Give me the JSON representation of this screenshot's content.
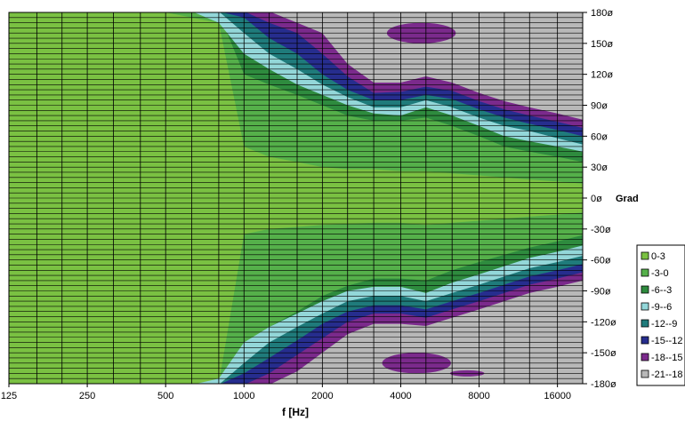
{
  "chart_data": {
    "type": "heatmap",
    "title": "",
    "xlabel": "f [Hz]",
    "ylabel": "",
    "x_scale": "log",
    "x_range": [
      125,
      20000
    ],
    "y_range": [
      -180,
      180
    ],
    "x_ticks": [
      125,
      250,
      500,
      1000,
      2000,
      4000,
      8000,
      16000
    ],
    "x_tick_labels": [
      "125",
      "250",
      "500",
      "1000",
      "2000",
      "4000",
      "8000",
      "16000"
    ],
    "y_ticks": [
      180,
      150,
      120,
      90,
      60,
      30,
      0,
      -30,
      -60,
      -90,
      -120,
      -150,
      -180
    ],
    "y_tick_labels": [
      "180ø",
      "150ø",
      "120ø",
      "90ø",
      "60ø",
      "30ø",
      "0ø",
      "-30ø",
      "-60ø",
      "-90ø",
      "-120ø",
      "-150ø",
      "-180ø"
    ],
    "y_unit_label": "Grad",
    "legend_position": "right-bottom",
    "legend": [
      {
        "label": "0-3",
        "color": "#7ac142"
      },
      {
        "label": "-3-0",
        "color": "#55b04a"
      },
      {
        "label": "-6--3",
        "color": "#2e8b3e"
      },
      {
        "label": "-9--6",
        "color": "#93d7d9"
      },
      {
        "label": "-12--9",
        "color": "#1f7b7b"
      },
      {
        "label": "-15--12",
        "color": "#262d8e"
      },
      {
        "label": "-18--15",
        "color": "#7b2a8c"
      },
      {
        "label": "-21--18",
        "color": "#b8b8b8"
      }
    ],
    "contours": {
      "freqs": [
        125,
        160,
        200,
        250,
        315,
        400,
        500,
        630,
        800,
        1000,
        1250,
        1600,
        2000,
        2500,
        3150,
        4000,
        5000,
        6300,
        8000,
        10000,
        12500,
        16000,
        20000
      ],
      "upper": [
        {
          "level": "-6--3",
          "angles": [
            180,
            180,
            180,
            180,
            180,
            180,
            180,
            180,
            180,
            120,
            110,
            100,
            90,
            80,
            75,
            75,
            78,
            70,
            60,
            50,
            45,
            40,
            35
          ]
        },
        {
          "level": "-9--6",
          "angles": [
            181,
            181,
            181,
            181,
            181,
            181,
            181,
            181,
            170,
            140,
            125,
            110,
            100,
            90,
            82,
            80,
            88,
            80,
            70,
            60,
            55,
            50,
            45
          ]
        },
        {
          "level": "-12--9",
          "angles": [
            181,
            181,
            181,
            181,
            181,
            181,
            181,
            181,
            181,
            160,
            140,
            125,
            110,
            98,
            88,
            88,
            95,
            88,
            78,
            70,
            65,
            58,
            52
          ]
        },
        {
          "level": "-15--12",
          "angles": [
            181,
            181,
            181,
            181,
            181,
            181,
            181,
            181,
            181,
            175,
            155,
            140,
            120,
            105,
            95,
            95,
            100,
            96,
            86,
            78,
            72,
            66,
            60
          ]
        },
        {
          "level": "-18--15",
          "angles": [
            181,
            181,
            181,
            181,
            181,
            181,
            181,
            181,
            181,
            181,
            170,
            160,
            140,
            118,
            102,
            103,
            108,
            104,
            94,
            86,
            80,
            74,
            68
          ]
        },
        {
          "level": "-21--18",
          "angles": [
            181,
            181,
            181,
            181,
            181,
            181,
            181,
            181,
            181,
            181,
            181,
            170,
            160,
            130,
            112,
            112,
            118,
            112,
            102,
            94,
            88,
            82,
            76
          ]
        }
      ],
      "lower": [
        {
          "level": "-6--3",
          "angles": [
            -180,
            -180,
            -180,
            -180,
            -180,
            -180,
            -180,
            -180,
            -180,
            -150,
            -125,
            -110,
            -95,
            -85,
            -78,
            -78,
            -80,
            -70,
            -62,
            -55,
            -48,
            -42,
            -36
          ]
        },
        {
          "level": "-9--6",
          "angles": [
            -181,
            -181,
            -181,
            -181,
            -181,
            -181,
            -181,
            -181,
            -175,
            -140,
            -125,
            -112,
            -100,
            -90,
            -86,
            -86,
            -92,
            -82,
            -74,
            -66,
            -58,
            -52,
            -46
          ]
        },
        {
          "level": "-12--9",
          "angles": [
            -181,
            -181,
            -181,
            -181,
            -181,
            -181,
            -181,
            -181,
            -181,
            -160,
            -140,
            -125,
            -112,
            -100,
            -95,
            -95,
            -100,
            -92,
            -84,
            -76,
            -68,
            -62,
            -56
          ]
        },
        {
          "level": "-15--12",
          "angles": [
            -181,
            -181,
            -181,
            -181,
            -181,
            -181,
            -181,
            -181,
            -181,
            -170,
            -155,
            -138,
            -122,
            -110,
            -104,
            -104,
            -108,
            -100,
            -92,
            -84,
            -76,
            -70,
            -64
          ]
        },
        {
          "level": "-18--15",
          "angles": [
            -181,
            -181,
            -181,
            -181,
            -181,
            -181,
            -181,
            -181,
            -181,
            -181,
            -170,
            -152,
            -136,
            -120,
            -112,
            -112,
            -116,
            -108,
            -100,
            -92,
            -84,
            -78,
            -72
          ]
        },
        {
          "level": "-21--18",
          "angles": [
            -181,
            -181,
            -181,
            -181,
            -181,
            -181,
            -181,
            -181,
            -181,
            -181,
            -181,
            -168,
            -150,
            -132,
            -122,
            -122,
            -124,
            -116,
            -108,
            -100,
            -92,
            -86,
            -80
          ]
        }
      ],
      "center_band": {
        "level": "0-3",
        "upper": [
          180,
          180,
          180,
          180,
          180,
          180,
          180,
          175,
          170,
          50,
          40,
          35,
          30,
          28,
          28,
          26,
          26,
          24,
          22,
          20,
          18,
          16,
          14
        ],
        "lower": [
          -180,
          -180,
          -180,
          -180,
          -180,
          -180,
          -180,
          -180,
          -180,
          -35,
          -30,
          -28,
          -26,
          -25,
          -24,
          -24,
          -26,
          -24,
          -22,
          -20,
          -18,
          -16,
          -14
        ]
      },
      "islands": [
        {
          "level": "-18--15",
          "freq": 4800,
          "angle": 160,
          "dw": 0.06,
          "dh": 10
        },
        {
          "level": "-18--15",
          "freq": 4600,
          "angle": -160,
          "dw": 0.06,
          "dh": 10
        },
        {
          "level": "-18--15",
          "freq": 7200,
          "angle": -170,
          "dw": 0.03,
          "dh": 3
        }
      ]
    }
  }
}
